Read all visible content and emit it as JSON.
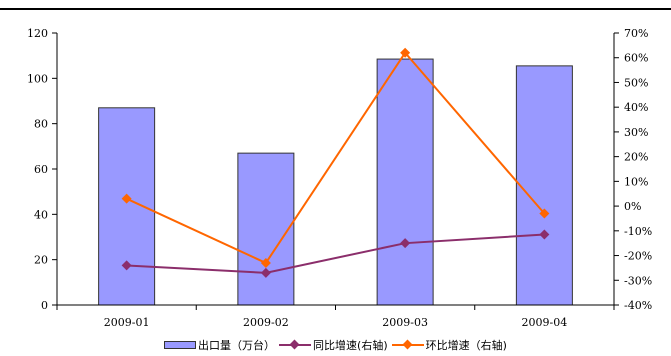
{
  "chart_data": {
    "type": "bar",
    "categories": [
      "2009-01",
      "2009-02",
      "2009-03",
      "2009-04"
    ],
    "series": [
      {
        "name": "出口量（万台）",
        "type": "bar",
        "axis": "left",
        "color": "#9999ff",
        "values": [
          87,
          67,
          108.5,
          105.5
        ]
      },
      {
        "name": "同比增速(右轴)",
        "type": "line",
        "axis": "right",
        "color": "#8b2e6b",
        "values": [
          -24,
          -27,
          -15,
          -11.5
        ]
      },
      {
        "name": "环比增速（右轴)",
        "type": "line",
        "axis": "right",
        "color": "#ff6600",
        "values": [
          3,
          -23,
          62,
          -3
        ]
      }
    ],
    "ylim_left": [
      0,
      120
    ],
    "ylim_right": [
      -40,
      70
    ],
    "yticks_left": [
      "0",
      "20",
      "40",
      "60",
      "80",
      "100",
      "120"
    ],
    "yticks_right": [
      "-40%",
      "-30%",
      "-20%",
      "-10%",
      "0%",
      "10%",
      "20%",
      "30%",
      "40%",
      "50%",
      "60%",
      "70%"
    ],
    "grid": false,
    "legend_position": "bottom"
  }
}
